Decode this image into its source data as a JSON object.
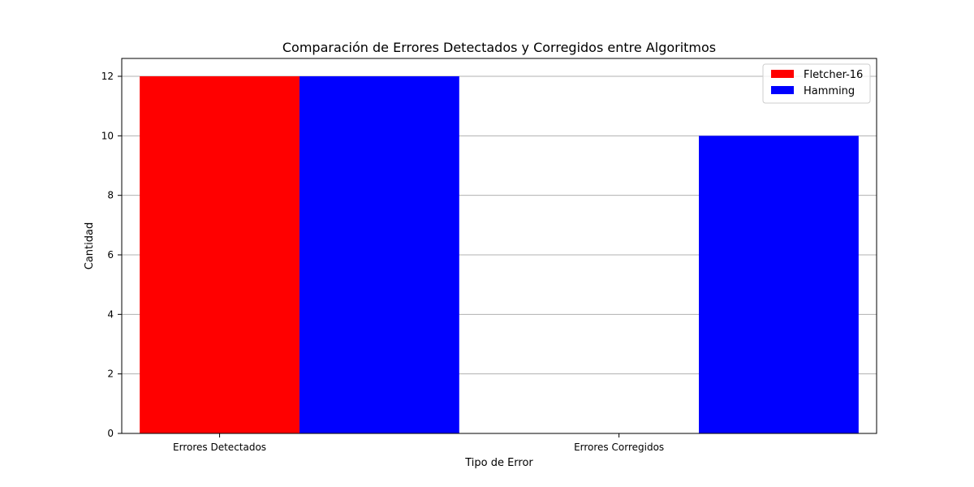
{
  "chart_data": {
    "type": "bar",
    "title": "Comparación de Errores Detectados y Corregidos entre Algoritmos",
    "xlabel": "Tipo de Error",
    "ylabel": "Cantidad",
    "categories": [
      "Errores Detectados",
      "Errores Corregidos"
    ],
    "series": [
      {
        "name": "Fletcher-16",
        "values": [
          12,
          0
        ],
        "color": "#ff0000"
      },
      {
        "name": "Hamming",
        "values": [
          12,
          10
        ],
        "color": "#0000ff"
      }
    ],
    "ylim": [
      0,
      12.6
    ],
    "yticks": [
      0,
      2,
      4,
      6,
      8,
      10,
      12
    ],
    "grid": "y",
    "legend_position": "top-right"
  }
}
